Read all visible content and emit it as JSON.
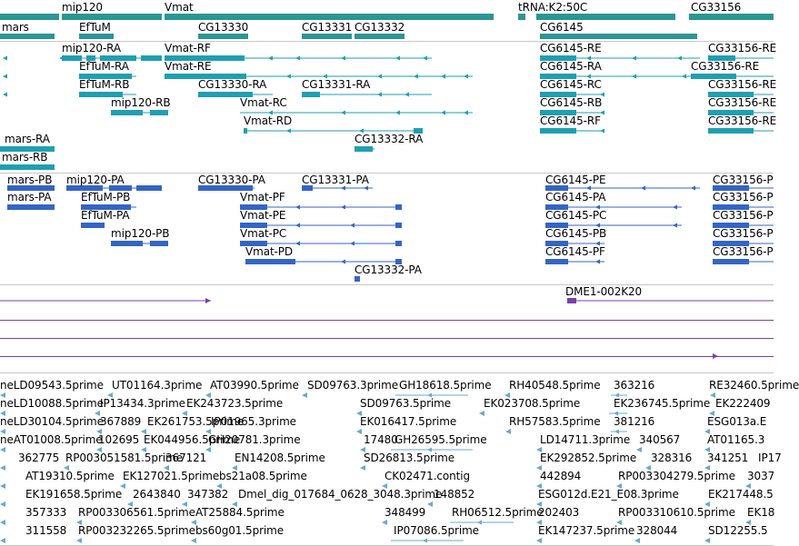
{
  "colors": {
    "gene": "#2b9693",
    "mrna": "#1f9fb1",
    "protein": "#3465c5",
    "cdna": "#7a40a8",
    "est": "#6aa7d6",
    "separator": "#c8c8c8"
  },
  "genes_track": {
    "labels": [
      "mars",
      "mip120",
      "Vmat",
      "EfTuM",
      "CG13330",
      "CG13331",
      "CG13332",
      "tRNA:K2:50C",
      "CG6145",
      "CG33156"
    ]
  },
  "mrna_track": {
    "labels": [
      "mip120-RA",
      "Vmat-RF",
      "CG6145-RE",
      "CG33156-RE",
      "EfTuM-RA",
      "Vmat-RE",
      "CG6145-RA",
      "CG33156-RE",
      "EfTuM-RB",
      "CG13330-RA",
      "CG13331-RA",
      "CG6145-RC",
      "CG33156-RE",
      "mip120-RB",
      "CG6145-RB",
      "CG33156-RE",
      "Vmat-RC",
      "CG6145-RF",
      "CG33156-RE",
      "Vmat-RD",
      "CG13332-RA",
      "mars-RA",
      "mars-RB"
    ]
  },
  "protein_track": {
    "labels": [
      "mars-PB",
      "mip120-PA",
      "CG13330-PA",
      "CG13331-PA",
      "CG6145-PE",
      "CG33156-P",
      "mars-PA",
      "EfTuM-PB",
      "Vmat-PF",
      "CG6145-PA",
      "CG33156-P",
      "EfTuM-PA",
      "Vmat-PE",
      "CG6145-PC",
      "CG33156-P",
      "mip120-PB",
      "Vmat-PC",
      "CG6145-PB",
      "CG33156-P",
      "Vmat-PD",
      "CG6145-PF",
      "CG33156-P",
      "CG13332-PA"
    ]
  },
  "cdna_track": {
    "labels": [
      "DME1-002K20"
    ]
  },
  "est_track": {
    "labels": [
      "neLD09543.5prime",
      "UT01164.3prime",
      "AT03990.5prime",
      "SD09763.3prime",
      "GH18618.5prime",
      "RH40548.5prime",
      "363216",
      "RE32460.5prime",
      "neLD10088.5prime",
      "IP13434.3prime",
      "EK243723.5prime",
      "SD09763.5prime",
      "EK023708.5prime",
      "EK236745.5prime",
      "EK222409",
      "neLD30104.5prime",
      "367889",
      "EK261753.5prime",
      "IP01965.3prime",
      "EK016417.5prime",
      "RH57583.5prime",
      "381216",
      "ESG013a.E",
      "neAT01008.5prime",
      "102695",
      "EK044956.5prime",
      "GH20781.3prime",
      "17480",
      "GH26595.5prime",
      "LD14711.3prime",
      "340567",
      "AT01165.3",
      "362775",
      "RP003051581.5prime",
      "367121",
      "EN14208.5prime",
      "SD26813.5prime",
      "EK292852.5prime",
      "328316",
      "341251",
      "IP17",
      "AT19310.5prime",
      "EK127021.5prime",
      "bs21a08.5prime",
      "CK02471.contig",
      "442894",
      "RP003304279.5prime",
      "3037",
      "EK191658.5prime",
      "2643840",
      "347382",
      "Dmel_dig_017684_0628_3048.3prime",
      "148852",
      "ESG012d.E21_E08.3prime",
      "EK217448.5",
      "357333",
      "RP003306561.5prime",
      "AT25884.5prime",
      "348499",
      "RH06512.5prime",
      "202403",
      "RP003310610.5prime",
      "EK18",
      "311558",
      "RP003232265.5prime",
      "bs60g01.5prime",
      "IP07086.5prime",
      "EK147237.5prime",
      "328044",
      "SD12255.5"
    ]
  }
}
